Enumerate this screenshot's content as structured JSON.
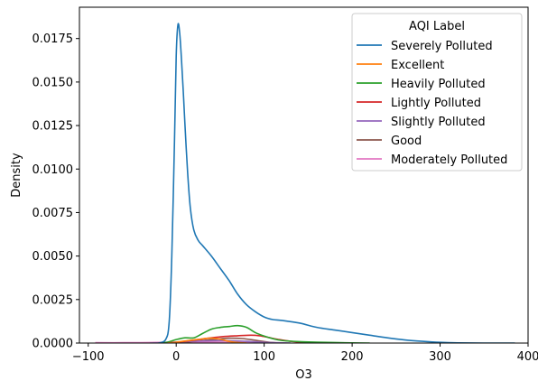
{
  "chart_data": {
    "type": "line",
    "xlabel": "O3",
    "ylabel": "Density",
    "xlim": [
      -110,
      400
    ],
    "ylim": [
      0,
      0.0193
    ],
    "x_ticks": [
      -100,
      0,
      100,
      200,
      300,
      400
    ],
    "y_ticks": [
      0,
      0.0025,
      0.005,
      0.0075,
      0.01,
      0.0125,
      0.015,
      0.0175
    ],
    "x_tick_labels": [
      "−100",
      "0",
      "100",
      "200",
      "300",
      "400"
    ],
    "y_tick_labels": [
      "0.0000",
      "0.0025",
      "0.0050",
      "0.0075",
      "0.0100",
      "0.0125",
      "0.0150",
      "0.0175"
    ],
    "grid": false,
    "legend": {
      "title": "AQI Label",
      "placement": "top-right"
    },
    "series": [
      {
        "name": "Severely Polluted",
        "color": "#1f77b4",
        "x": [
          -20,
          -12,
          -8,
          -5,
          -2,
          0,
          2,
          4,
          6,
          8,
          10,
          13,
          16,
          20,
          25,
          30,
          40,
          50,
          60,
          70,
          80,
          90,
          100,
          110,
          120,
          140,
          160,
          180,
          200,
          220,
          240,
          260,
          280,
          300,
          320,
          350,
          385
        ],
        "y": [
          0,
          0.0002,
          0.0012,
          0.005,
          0.0115,
          0.0165,
          0.0183,
          0.0178,
          0.0163,
          0.0145,
          0.0125,
          0.0098,
          0.0078,
          0.0065,
          0.0059,
          0.0056,
          0.005,
          0.0043,
          0.0036,
          0.0028,
          0.0022,
          0.0018,
          0.0015,
          0.00135,
          0.0013,
          0.00115,
          0.0009,
          0.00075,
          0.0006,
          0.00045,
          0.0003,
          0.00018,
          0.0001,
          4e-05,
          1e-05,
          0,
          0
        ]
      },
      {
        "name": "Excellent",
        "color": "#ff7f0e",
        "x": [
          -10,
          0,
          10,
          20,
          30,
          40,
          50,
          60,
          70,
          80
        ],
        "y": [
          0,
          5e-05,
          0.00012,
          0.00018,
          0.00024,
          0.00028,
          0.00022,
          0.0001,
          3e-05,
          0
        ]
      },
      {
        "name": "Heavily Polluted",
        "color": "#2ca02c",
        "x": [
          -20,
          -10,
          0,
          10,
          20,
          30,
          40,
          50,
          60,
          70,
          80,
          90,
          100,
          110,
          120,
          140,
          160,
          180,
          200,
          220
        ],
        "y": [
          0,
          5e-05,
          0.0002,
          0.0003,
          0.0003,
          0.00055,
          0.0008,
          0.0009,
          0.00095,
          0.001,
          0.0009,
          0.0006,
          0.0004,
          0.00025,
          0.00015,
          8e-05,
          5e-05,
          3e-05,
          1e-05,
          0
        ]
      },
      {
        "name": "Lightly Polluted",
        "color": "#d62728",
        "x": [
          -20,
          -5,
          10,
          25,
          40,
          55,
          70,
          85,
          95,
          105,
          115,
          130,
          150,
          170
        ],
        "y": [
          0,
          2e-05,
          0.0001,
          0.0002,
          0.0003,
          0.00038,
          0.00042,
          0.00045,
          0.00042,
          0.00032,
          0.00022,
          0.0001,
          3e-05,
          0
        ]
      },
      {
        "name": "Slightly Polluted",
        "color": "#9467bd",
        "x": [
          -30,
          -10,
          10,
          30,
          50,
          70,
          90,
          110,
          130
        ],
        "y": [
          0,
          3e-05,
          8e-05,
          0.00012,
          0.00014,
          0.00012,
          7e-05,
          2e-05,
          0
        ]
      },
      {
        "name": "Good",
        "color": "#8c564b",
        "x": [
          -10,
          10,
          30,
          45,
          60,
          75,
          90,
          105,
          120
        ],
        "y": [
          0,
          5e-05,
          0.00015,
          0.00022,
          0.00028,
          0.00026,
          0.00016,
          5e-05,
          0
        ]
      },
      {
        "name": "Moderately Polluted",
        "color": "#e377c2",
        "x": [
          -92,
          -60,
          -30,
          0,
          30,
          60,
          90,
          120
        ],
        "y": [
          2e-05,
          2e-05,
          3e-05,
          5e-05,
          6e-05,
          4e-05,
          2e-05,
          0
        ]
      }
    ]
  }
}
